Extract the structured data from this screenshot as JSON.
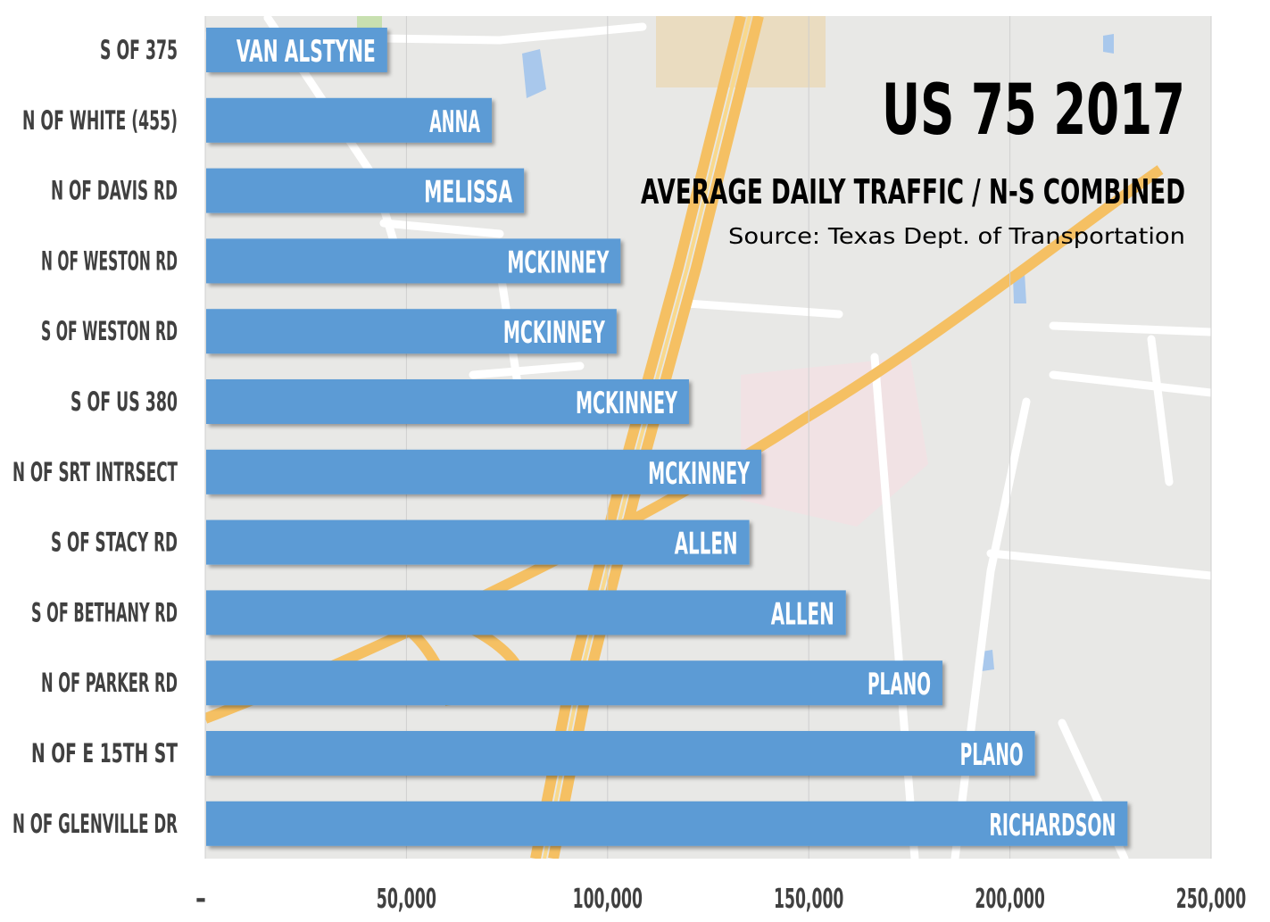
{
  "chart_data": {
    "type": "bar",
    "orientation": "horizontal",
    "title": "US 75 2017",
    "subtitle": "AVERAGE DAILY TRAFFIC / N-S COMBINED",
    "source": "Source: Texas Dept. of Transportation",
    "categories": [
      "S OF 375",
      "N OF WHITE (455)",
      "N OF DAVIS RD",
      "N OF WESTON RD",
      "S OF WESTON RD",
      "S OF US 380",
      "N OF SRT INTRSECT",
      "S OF STACY RD",
      "S OF BETHANY RD",
      "N OF PARKER RD",
      "N OF E  15TH ST",
      "N OF GLENVILLE DR"
    ],
    "bar_labels": [
      "VAN ALSTYNE",
      "ANNA",
      "MELISSA",
      "MCKINNEY",
      "MCKINNEY",
      "MCKINNEY",
      "MCKINNEY",
      "ALLEN",
      "ALLEN",
      "PLANO",
      "PLANO",
      "RICHARDSON"
    ],
    "values": [
      45000,
      71000,
      79000,
      103000,
      102000,
      120000,
      138000,
      135000,
      159000,
      183000,
      206000,
      229000
    ],
    "xlim": [
      0,
      250000
    ],
    "x_tick_labels": [
      "-",
      "50,000",
      "100,000",
      "150,000",
      "200,000",
      "250,000"
    ],
    "grid": true,
    "colors": {
      "bar": "#5b9bd5",
      "bar_text": "#ffffff",
      "category_text": "#404040",
      "title_text": "#000000"
    }
  }
}
